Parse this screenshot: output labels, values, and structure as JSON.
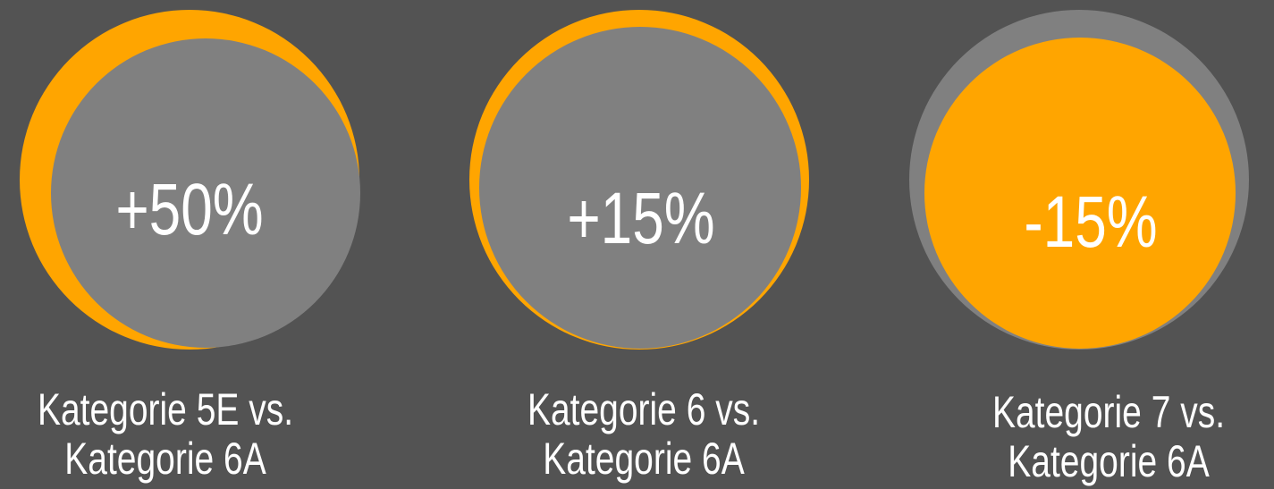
{
  "items": [
    {
      "value": "+50%",
      "caption": [
        "Kategorie 5E vs.",
        "Kategorie 6A"
      ]
    },
    {
      "value": "+15%",
      "caption": [
        "Kategorie 6 vs.",
        "Kategorie 6A"
      ]
    },
    {
      "value": "-15%",
      "caption": [
        "Kategorie 7 vs.",
        "Kategorie 6A"
      ]
    }
  ]
}
